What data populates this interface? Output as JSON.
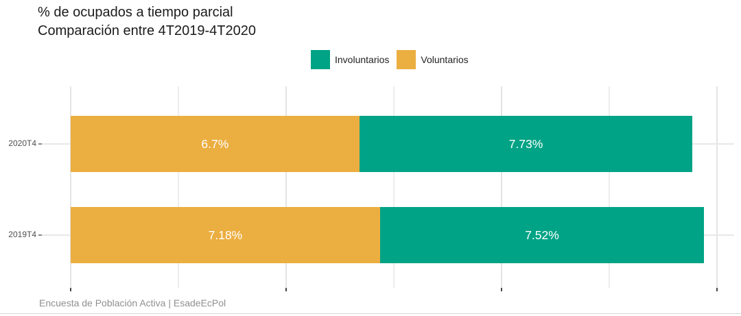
{
  "chart_data": {
    "type": "bar",
    "orientation": "horizontal",
    "stacked": true,
    "title": "% de ocupados a tiempo parcial",
    "subtitle": "Comparación entre 4T2019-4T2020",
    "caption": "Encuesta de Población Activa | EsadeEcPol",
    "categories": [
      "2020T4",
      "2019T4"
    ],
    "series": [
      {
        "name": "Voluntarios",
        "color": "#EBAE40",
        "values": [
          6.7,
          7.18
        ],
        "labels": [
          "6.7%",
          "7.18%"
        ]
      },
      {
        "name": "Involuntarios",
        "color": "#00A385",
        "values": [
          7.73,
          7.52
        ],
        "labels": [
          "7.73%",
          "7.52%"
        ]
      }
    ],
    "x_axis": {
      "min": 0,
      "max": 15,
      "major_ticks": [
        0,
        5,
        10,
        15
      ],
      "minor_gridlines": [
        2.5,
        7.5,
        12.5
      ],
      "tick_labels_visible": false
    },
    "legend": {
      "position": "top-center",
      "entries": [
        {
          "label": "Involuntarios",
          "color": "#00A385"
        },
        {
          "label": "Voluntarios",
          "color": "#EBAE40"
        }
      ]
    },
    "grid": true
  }
}
